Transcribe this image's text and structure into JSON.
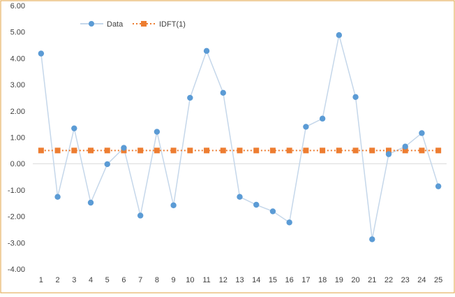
{
  "chart_data": {
    "type": "line",
    "title": "",
    "xlabel": "",
    "ylabel": "",
    "categories": [
      "1",
      "2",
      "3",
      "4",
      "5",
      "6",
      "7",
      "8",
      "9",
      "10",
      "11",
      "12",
      "13",
      "14",
      "15",
      "16",
      "17",
      "18",
      "19",
      "20",
      "21",
      "22",
      "23",
      "24",
      "25"
    ],
    "ylim": [
      -4.0,
      6.0
    ],
    "yticks": [
      "6.00",
      "5.00",
      "4.00",
      "3.00",
      "2.00",
      "1.00",
      "0.00",
      "-1.00",
      "-2.00",
      "-3.00",
      "-4.00"
    ],
    "grid": false,
    "legend_position": "top-left",
    "series": [
      {
        "name": "Data",
        "color": "#5b9bd5",
        "line_color": "#c5d7ea",
        "marker": "circle",
        "values": [
          4.18,
          -1.26,
          1.34,
          -1.48,
          -0.02,
          0.6,
          -1.97,
          1.21,
          -1.58,
          2.5,
          4.28,
          2.69,
          -1.26,
          -1.56,
          -1.81,
          -2.23,
          1.4,
          1.71,
          4.88,
          2.53,
          -2.87,
          0.36,
          0.65,
          1.16,
          -0.86
        ]
      },
      {
        "name": "IDFT(1)",
        "color": "#ed7d31",
        "marker": "square",
        "line_style": "dotted",
        "values": [
          0.5,
          0.5,
          0.5,
          0.5,
          0.5,
          0.5,
          0.5,
          0.5,
          0.5,
          0.5,
          0.5,
          0.5,
          0.5,
          0.5,
          0.5,
          0.5,
          0.5,
          0.5,
          0.5,
          0.5,
          0.5,
          0.5,
          0.5,
          0.5,
          0.5
        ]
      }
    ],
    "frame_color": "#e0a040",
    "zero_line_color": "#d9d9d9"
  }
}
